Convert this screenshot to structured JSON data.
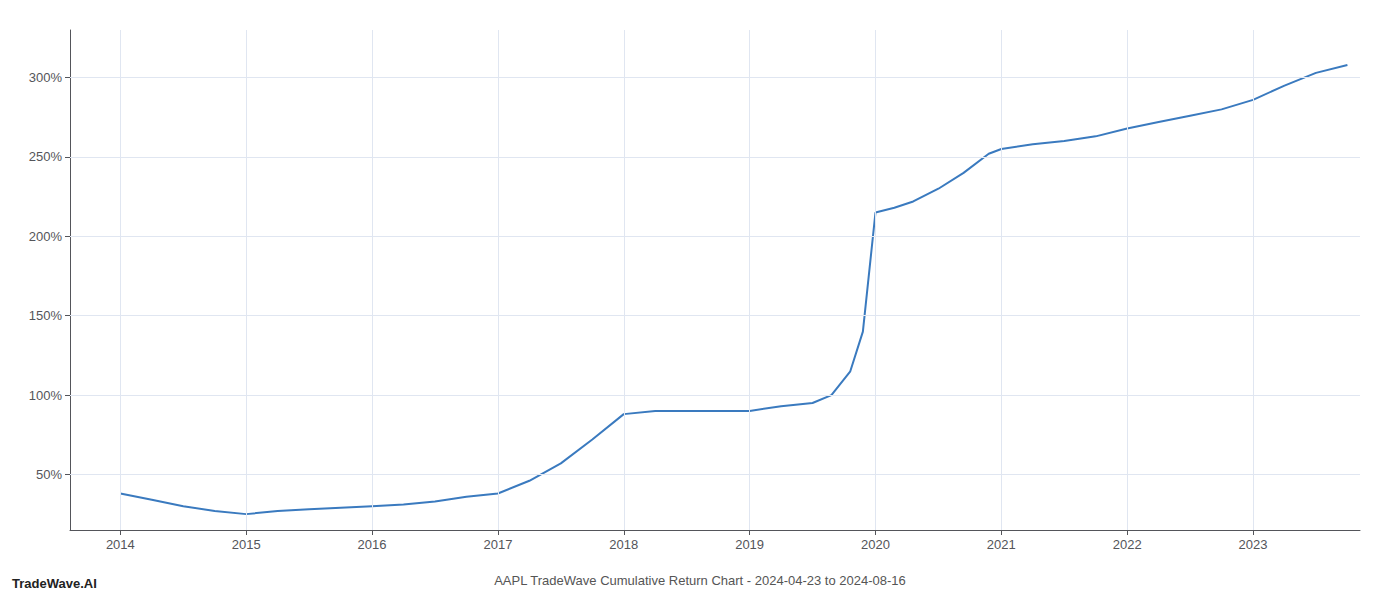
{
  "chart_data": {
    "type": "line",
    "title": "AAPL TradeWave Cumulative Return Chart - 2024-04-23 to 2024-08-16",
    "annotations": [
      "TradeWave.AI"
    ],
    "color": "#3a7abf",
    "grid": true,
    "x": [
      2014.0,
      2014.25,
      2014.5,
      2014.75,
      2015.0,
      2015.25,
      2015.5,
      2015.75,
      2016.0,
      2016.25,
      2016.5,
      2016.75,
      2017.0,
      2017.25,
      2017.5,
      2017.75,
      2018.0,
      2018.25,
      2018.5,
      2018.75,
      2019.0,
      2019.25,
      2019.5,
      2019.65,
      2019.8,
      2019.9,
      2020.0,
      2020.15,
      2020.3,
      2020.5,
      2020.7,
      2020.9,
      2021.0,
      2021.25,
      2021.5,
      2021.75,
      2022.0,
      2022.25,
      2022.5,
      2022.75,
      2023.0,
      2023.25,
      2023.5,
      2023.75
    ],
    "values": [
      38,
      34,
      30,
      27,
      25,
      27,
      28,
      29,
      30,
      31,
      33,
      36,
      38,
      46,
      57,
      72,
      88,
      90,
      90,
      90,
      90,
      93,
      95,
      100,
      115,
      140,
      215,
      218,
      222,
      230,
      240,
      252,
      255,
      258,
      260,
      263,
      268,
      272,
      276,
      280,
      286,
      295,
      303,
      308
    ],
    "xlim": [
      2013.6,
      2023.85
    ],
    "ylim": [
      15,
      330
    ],
    "xticks": [
      2014,
      2015,
      2016,
      2017,
      2018,
      2019,
      2020,
      2021,
      2022,
      2023
    ],
    "yticks": [
      {
        "value": 50,
        "label": "50%"
      },
      {
        "value": 100,
        "label": "100%"
      },
      {
        "value": 150,
        "label": "150%"
      },
      {
        "value": 200,
        "label": "200%"
      },
      {
        "value": 250,
        "label": "250%"
      },
      {
        "value": 300,
        "label": "300%"
      }
    ]
  }
}
